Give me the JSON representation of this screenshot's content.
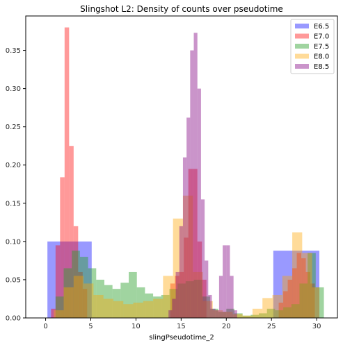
{
  "chart_data": {
    "type": "histogram",
    "title": "Slingshot L2: Density of counts over pseudotime",
    "xlabel": "slingPseudotime_2",
    "ylabel": "",
    "xlim": [
      -2.2,
      32.3
    ],
    "ylim": [
      0,
      0.395
    ],
    "xticks": [
      0,
      5,
      10,
      15,
      20,
      25,
      30
    ],
    "yticks": [
      0.0,
      0.05,
      0.1,
      0.15,
      0.2,
      0.25,
      0.3,
      0.35
    ],
    "ytick_labels": [
      "0.00",
      "0.05",
      "0.10",
      "0.15",
      "0.20",
      "0.25",
      "0.30",
      "0.35"
    ],
    "grid": false,
    "legend_position": "top-right",
    "series": [
      {
        "name": "E6.5",
        "color": "#0000ff",
        "alpha": 0.4,
        "bins": [
          {
            "x0": 0.2,
            "x1": 5.1,
            "y": 0.1
          },
          {
            "x0": 25.2,
            "x1": 30.3,
            "y": 0.088
          }
        ]
      },
      {
        "name": "E7.0",
        "color": "#ff0000",
        "alpha": 0.4,
        "bins": [
          {
            "x0": 0.6,
            "x1": 1.1,
            "y": 0.012
          },
          {
            "x0": 1.1,
            "x1": 1.6,
            "y": 0.095
          },
          {
            "x0": 1.6,
            "x1": 2.1,
            "y": 0.184
          },
          {
            "x0": 2.1,
            "x1": 2.6,
            "y": 0.38
          },
          {
            "x0": 2.6,
            "x1": 3.1,
            "y": 0.225
          },
          {
            "x0": 3.1,
            "x1": 3.6,
            "y": 0.12
          },
          {
            "x0": 3.6,
            "x1": 4.1,
            "y": 0.06
          },
          {
            "x0": 4.1,
            "x1": 4.6,
            "y": 0.038
          },
          {
            "x0": 13.8,
            "x1": 14.3,
            "y": 0.045
          },
          {
            "x0": 14.3,
            "x1": 14.8,
            "y": 0.055
          },
          {
            "x0": 14.8,
            "x1": 15.3,
            "y": 0.06
          },
          {
            "x0": 15.3,
            "x1": 15.8,
            "y": 0.105
          },
          {
            "x0": 15.8,
            "x1": 16.3,
            "y": 0.195
          },
          {
            "x0": 16.3,
            "x1": 16.8,
            "y": 0.195
          },
          {
            "x0": 16.8,
            "x1": 17.3,
            "y": 0.1
          },
          {
            "x0": 17.3,
            "x1": 17.8,
            "y": 0.05
          },
          {
            "x0": 25.8,
            "x1": 26.3,
            "y": 0.02
          },
          {
            "x0": 26.3,
            "x1": 26.8,
            "y": 0.035
          },
          {
            "x0": 26.8,
            "x1": 27.3,
            "y": 0.05
          },
          {
            "x0": 27.3,
            "x1": 27.8,
            "y": 0.065
          },
          {
            "x0": 27.8,
            "x1": 28.3,
            "y": 0.085
          },
          {
            "x0": 28.3,
            "x1": 28.8,
            "y": 0.078
          },
          {
            "x0": 28.8,
            "x1": 29.3,
            "y": 0.06
          },
          {
            "x0": 29.3,
            "x1": 29.8,
            "y": 0.045
          }
        ]
      },
      {
        "name": "E7.5",
        "color": "#2ca02c",
        "alpha": 0.45,
        "bins": [
          {
            "x0": 1.1,
            "x1": 2.0,
            "y": 0.028
          },
          {
            "x0": 2.0,
            "x1": 2.9,
            "y": 0.065
          },
          {
            "x0": 2.9,
            "x1": 3.8,
            "y": 0.088
          },
          {
            "x0": 3.8,
            "x1": 4.7,
            "y": 0.08
          },
          {
            "x0": 4.7,
            "x1": 5.6,
            "y": 0.065
          },
          {
            "x0": 5.6,
            "x1": 6.5,
            "y": 0.05
          },
          {
            "x0": 6.5,
            "x1": 7.4,
            "y": 0.043
          },
          {
            "x0": 7.4,
            "x1": 8.3,
            "y": 0.038
          },
          {
            "x0": 8.3,
            "x1": 9.2,
            "y": 0.046
          },
          {
            "x0": 9.2,
            "x1": 10.1,
            "y": 0.06
          },
          {
            "x0": 10.1,
            "x1": 11.0,
            "y": 0.04
          },
          {
            "x0": 11.0,
            "x1": 11.9,
            "y": 0.032
          },
          {
            "x0": 11.9,
            "x1": 12.8,
            "y": 0.028
          },
          {
            "x0": 12.8,
            "x1": 13.7,
            "y": 0.03
          },
          {
            "x0": 13.7,
            "x1": 14.6,
            "y": 0.038
          },
          {
            "x0": 14.6,
            "x1": 15.5,
            "y": 0.045
          },
          {
            "x0": 15.5,
            "x1": 16.4,
            "y": 0.048
          },
          {
            "x0": 16.4,
            "x1": 17.3,
            "y": 0.05
          },
          {
            "x0": 17.3,
            "x1": 18.2,
            "y": 0.028
          },
          {
            "x0": 18.2,
            "x1": 19.1,
            "y": 0.012
          },
          {
            "x0": 19.1,
            "x1": 20.0,
            "y": 0.008
          },
          {
            "x0": 20.0,
            "x1": 20.9,
            "y": 0.012
          },
          {
            "x0": 20.9,
            "x1": 21.8,
            "y": 0.006
          },
          {
            "x0": 21.8,
            "x1": 22.7,
            "y": 0.003
          },
          {
            "x0": 22.7,
            "x1": 23.6,
            "y": 0.004
          },
          {
            "x0": 23.6,
            "x1": 24.5,
            "y": 0.006
          },
          {
            "x0": 24.5,
            "x1": 25.4,
            "y": 0.012
          },
          {
            "x0": 25.4,
            "x1": 26.3,
            "y": 0.01
          },
          {
            "x0": 26.3,
            "x1": 27.2,
            "y": 0.014
          },
          {
            "x0": 27.2,
            "x1": 28.1,
            "y": 0.018
          },
          {
            "x0": 28.1,
            "x1": 29.0,
            "y": 0.045
          },
          {
            "x0": 29.0,
            "x1": 29.9,
            "y": 0.085
          },
          {
            "x0": 29.9,
            "x1": 30.8,
            "y": 0.04
          }
        ]
      },
      {
        "name": "E8.0",
        "color": "#ffa500",
        "alpha": 0.4,
        "bins": [
          {
            "x0": 0.9,
            "x1": 2.0,
            "y": 0.01
          },
          {
            "x0": 2.0,
            "x1": 3.1,
            "y": 0.04
          },
          {
            "x0": 3.1,
            "x1": 4.2,
            "y": 0.055
          },
          {
            "x0": 4.2,
            "x1": 5.3,
            "y": 0.045
          },
          {
            "x0": 5.3,
            "x1": 6.4,
            "y": 0.03
          },
          {
            "x0": 6.4,
            "x1": 7.5,
            "y": 0.025
          },
          {
            "x0": 7.5,
            "x1": 8.6,
            "y": 0.022
          },
          {
            "x0": 8.6,
            "x1": 9.7,
            "y": 0.018
          },
          {
            "x0": 9.7,
            "x1": 10.8,
            "y": 0.02
          },
          {
            "x0": 10.8,
            "x1": 11.9,
            "y": 0.022
          },
          {
            "x0": 11.9,
            "x1": 13.0,
            "y": 0.025
          },
          {
            "x0": 13.0,
            "x1": 14.1,
            "y": 0.055
          },
          {
            "x0": 14.1,
            "x1": 15.2,
            "y": 0.13
          },
          {
            "x0": 15.2,
            "x1": 16.3,
            "y": 0.16
          },
          {
            "x0": 16.3,
            "x1": 17.4,
            "y": 0.06
          },
          {
            "x0": 17.4,
            "x1": 18.5,
            "y": 0.022
          },
          {
            "x0": 18.5,
            "x1": 19.6,
            "y": 0.01
          },
          {
            "x0": 19.6,
            "x1": 20.7,
            "y": 0.008
          },
          {
            "x0": 20.7,
            "x1": 21.8,
            "y": 0.005
          },
          {
            "x0": 21.8,
            "x1": 22.9,
            "y": 0.003
          },
          {
            "x0": 22.9,
            "x1": 24.0,
            "y": 0.012
          },
          {
            "x0": 24.0,
            "x1": 25.1,
            "y": 0.026
          },
          {
            "x0": 25.1,
            "x1": 26.2,
            "y": 0.03
          },
          {
            "x0": 26.2,
            "x1": 27.3,
            "y": 0.055
          },
          {
            "x0": 27.3,
            "x1": 28.4,
            "y": 0.112
          },
          {
            "x0": 28.4,
            "x1": 29.5,
            "y": 0.085
          },
          {
            "x0": 29.5,
            "x1": 30.3,
            "y": 0.04
          }
        ]
      },
      {
        "name": "E8.5",
        "color": "#800080",
        "alpha": 0.42,
        "bins": [
          {
            "x0": 13.6,
            "x1": 14.0,
            "y": 0.01
          },
          {
            "x0": 14.0,
            "x1": 14.4,
            "y": 0.025
          },
          {
            "x0": 14.4,
            "x1": 14.8,
            "y": 0.06
          },
          {
            "x0": 14.8,
            "x1": 15.2,
            "y": 0.12
          },
          {
            "x0": 15.2,
            "x1": 15.6,
            "y": 0.21
          },
          {
            "x0": 15.6,
            "x1": 16.0,
            "y": 0.262
          },
          {
            "x0": 16.0,
            "x1": 16.4,
            "y": 0.35
          },
          {
            "x0": 16.4,
            "x1": 16.8,
            "y": 0.373
          },
          {
            "x0": 16.8,
            "x1": 17.2,
            "y": 0.3
          },
          {
            "x0": 17.2,
            "x1": 17.6,
            "y": 0.155
          },
          {
            "x0": 17.6,
            "x1": 18.0,
            "y": 0.075
          },
          {
            "x0": 18.0,
            "x1": 18.4,
            "y": 0.03
          },
          {
            "x0": 18.4,
            "x1": 18.8,
            "y": 0.012
          },
          {
            "x0": 18.8,
            "x1": 19.2,
            "y": 0.01
          },
          {
            "x0": 19.2,
            "x1": 19.6,
            "y": 0.055
          },
          {
            "x0": 19.6,
            "x1": 20.0,
            "y": 0.095
          },
          {
            "x0": 20.0,
            "x1": 20.4,
            "y": 0.095
          },
          {
            "x0": 20.4,
            "x1": 20.8,
            "y": 0.055
          },
          {
            "x0": 20.8,
            "x1": 21.2,
            "y": 0.01
          }
        ]
      }
    ]
  }
}
